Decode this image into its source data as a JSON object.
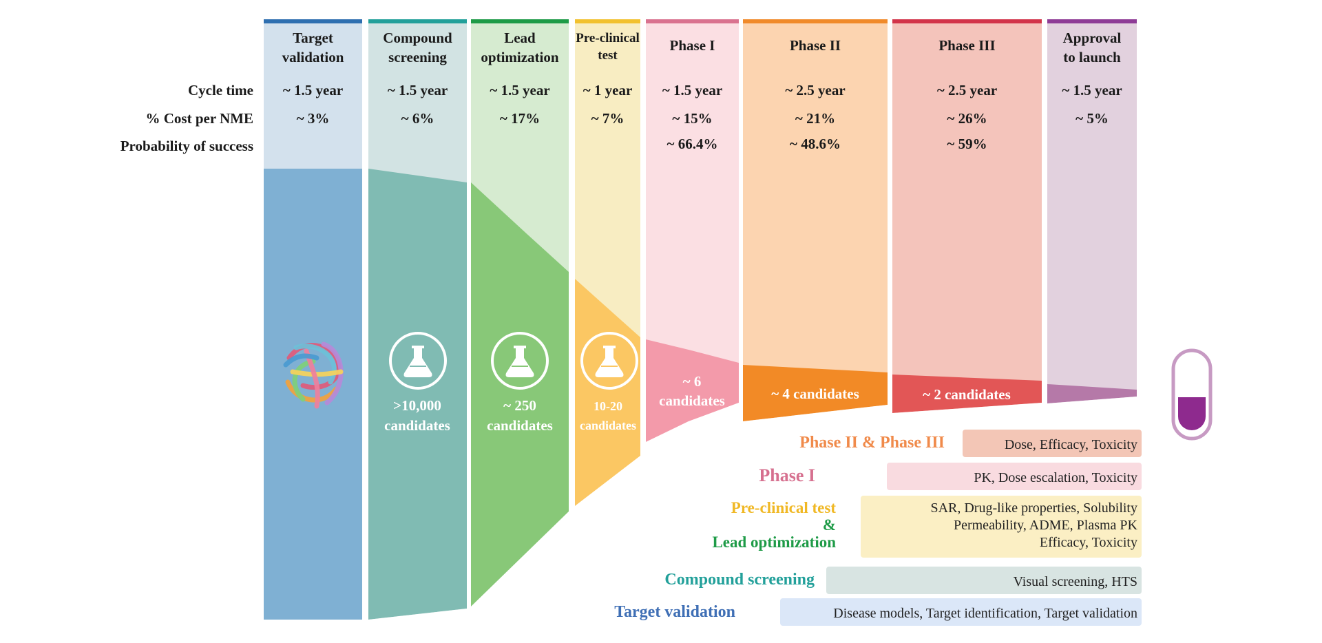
{
  "row_labels": {
    "cycle_time": "Cycle time",
    "cost": "% Cost per NME",
    "probability": "Probability of success"
  },
  "stages": [
    {
      "id": "target-validation",
      "header": [
        "Target",
        "validation"
      ],
      "cycle_time": "~ 1.5 year",
      "cost": "~ 3%",
      "probability": "",
      "candidates": [],
      "color": "#2e6fb0"
    },
    {
      "id": "compound-screening",
      "header": [
        "Compound",
        "screening"
      ],
      "cycle_time": "~ 1.5 year",
      "cost": "~ 6%",
      "probability": "",
      "candidates": [
        ">10,000",
        "candidates"
      ],
      "color": "#22a09a"
    },
    {
      "id": "lead-optimization",
      "header": [
        "Lead",
        "optimization"
      ],
      "cycle_time": "~ 1.5 year",
      "cost": "~ 17%",
      "probability": "",
      "candidates": [
        "~ 250",
        "candidates"
      ],
      "color": "#1e9b47"
    },
    {
      "id": "pre-clinical-test",
      "header": [
        "Pre-clinical",
        "test"
      ],
      "cycle_time": "~ 1 year",
      "cost": "~ 7%",
      "probability": "",
      "candidates": [
        "10-20",
        "candidates"
      ],
      "color": "#f2c12e"
    },
    {
      "id": "phase-1",
      "header": [
        "Phase I"
      ],
      "cycle_time": "~ 1.5 year",
      "cost": "~ 15%",
      "probability": "~ 66.4%",
      "candidates": [
        "~ 6",
        "candidates"
      ],
      "color": "#d9728f"
    },
    {
      "id": "phase-2",
      "header": [
        "Phase II"
      ],
      "cycle_time": "~ 2.5 year",
      "cost": "~ 21%",
      "probability": "~ 48.6%",
      "candidates": [
        "~ 4 candidates"
      ],
      "color": "#f08a2a"
    },
    {
      "id": "phase-3",
      "header": [
        "Phase III"
      ],
      "cycle_time": "~ 2.5 year",
      "cost": "~ 26%",
      "probability": "~ 59%",
      "candidates": [
        "~ 2 candidates"
      ],
      "color": "#d2344a"
    },
    {
      "id": "approval",
      "header": [
        "Approval",
        "to launch"
      ],
      "cycle_time": "~ 1.5 year",
      "cost": "~ 5%",
      "probability": "",
      "candidates": [],
      "color": "#8e3b96"
    }
  ],
  "legend": [
    {
      "id": "phase-2-3",
      "labels": [
        "Phase II & Phase III"
      ],
      "label_colors": [
        "#f08a4a"
      ],
      "details": [
        "Dose, Efficacy, Toxicity"
      ],
      "box_color": "#f3c6b6"
    },
    {
      "id": "phase-1",
      "labels": [
        "Phase I"
      ],
      "label_colors": [
        "#d6708f"
      ],
      "details": [
        "PK, Dose escalation, Toxicity"
      ],
      "box_color": "#f9dbe0"
    },
    {
      "id": "preclinical-lead",
      "labels": [
        "Pre-clinical test",
        "&",
        "Lead optimization"
      ],
      "label_colors": [
        "#f0b825",
        "#1e9b47",
        "#1e9b47"
      ],
      "details": [
        "SAR, Drug-like properties, Solubility",
        "Permeability, ADME, Plasma PK",
        "Efficacy, Toxicity"
      ],
      "box_color": "#fbefc4"
    },
    {
      "id": "compound-screening",
      "labels": [
        "Compound screening"
      ],
      "label_colors": [
        "#22a09a"
      ],
      "details": [
        "Visual screening, HTS"
      ],
      "box_color": "#d8e4e2"
    },
    {
      "id": "target-validation",
      "labels": [
        "Target validation"
      ],
      "label_colors": [
        "#3f6fb5"
      ],
      "details": [
        "Disease models, Target identification, Target validation"
      ],
      "box_color": "#dbe7f8"
    }
  ],
  "icons": {
    "protein": "protein-structure-icon",
    "flask": "flask-icon",
    "capsule": "capsule-icon"
  }
}
